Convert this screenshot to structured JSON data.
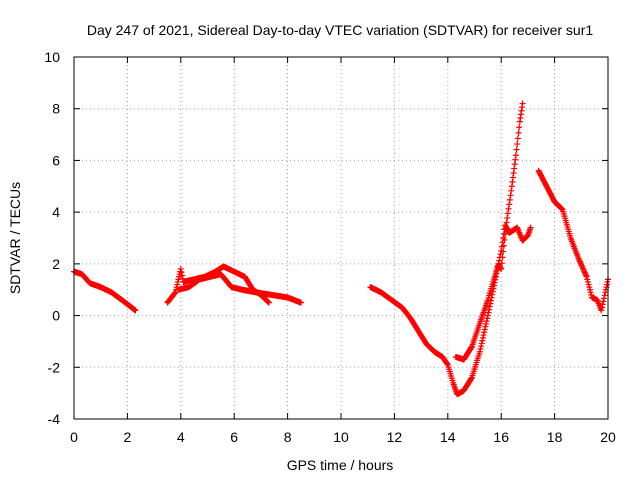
{
  "chart_data": {
    "type": "scatter",
    "title": "Day 247 of 2021, Sidereal Day-to-day VTEC variation (SDTVAR) for receiver sur1",
    "xlabel": "GPS time / hours",
    "ylabel": "SDTVAR / TECUs",
    "xlim": [
      0,
      20
    ],
    "ylim": [
      -4,
      10
    ],
    "xticks": [
      0,
      2,
      4,
      6,
      8,
      10,
      12,
      14,
      16,
      18,
      20
    ],
    "yticks": [
      -4,
      -2,
      0,
      2,
      4,
      6,
      8,
      10
    ],
    "grid": true,
    "marker": "+",
    "color": "#ff0000",
    "series": [
      {
        "name": "sur1",
        "segments": [
          [
            [
              0.0,
              1.7
            ],
            [
              0.3,
              1.6
            ],
            [
              0.6,
              1.25
            ],
            [
              1.0,
              1.1
            ],
            [
              1.4,
              0.9
            ],
            [
              1.8,
              0.6
            ],
            [
              2.3,
              0.2
            ]
          ],
          [
            [
              3.5,
              0.5
            ],
            [
              3.8,
              0.9
            ],
            [
              4.0,
              1.8
            ],
            [
              4.1,
              1.3
            ],
            [
              4.5,
              1.4
            ],
            [
              4.9,
              1.5
            ],
            [
              5.3,
              1.7
            ],
            [
              5.6,
              1.9
            ],
            [
              6.0,
              1.7
            ],
            [
              6.4,
              1.5
            ],
            [
              6.7,
              1.0
            ],
            [
              7.0,
              0.8
            ],
            [
              7.3,
              0.5
            ]
          ],
          [
            [
              3.9,
              1.0
            ],
            [
              4.3,
              1.1
            ],
            [
              4.7,
              1.4
            ],
            [
              5.1,
              1.5
            ],
            [
              5.5,
              1.6
            ],
            [
              5.9,
              1.1
            ],
            [
              6.3,
              1.0
            ],
            [
              6.8,
              0.9
            ],
            [
              7.4,
              0.8
            ],
            [
              8.0,
              0.7
            ],
            [
              8.5,
              0.5
            ]
          ],
          [
            [
              11.1,
              1.1
            ],
            [
              11.5,
              0.9
            ],
            [
              11.9,
              0.6
            ],
            [
              12.3,
              0.3
            ],
            [
              12.6,
              -0.1
            ],
            [
              12.9,
              -0.6
            ],
            [
              13.2,
              -1.1
            ],
            [
              13.5,
              -1.4
            ],
            [
              13.8,
              -1.6
            ],
            [
              14.0,
              -1.9
            ],
            [
              14.2,
              -2.6
            ],
            [
              14.35,
              -3.05
            ],
            [
              14.6,
              -2.9
            ],
            [
              14.9,
              -2.4
            ],
            [
              15.2,
              -1.4
            ],
            [
              15.5,
              0.0
            ],
            [
              15.8,
              1.5
            ],
            [
              16.0,
              2.5
            ],
            [
              16.15,
              3.5
            ],
            [
              16.3,
              3.2
            ],
            [
              16.6,
              3.4
            ],
            [
              16.8,
              2.9
            ],
            [
              17.0,
              3.1
            ],
            [
              17.1,
              3.4
            ]
          ],
          [
            [
              14.3,
              -1.6
            ],
            [
              14.6,
              -1.7
            ],
            [
              14.9,
              -1.2
            ],
            [
              15.2,
              -0.3
            ],
            [
              15.5,
              0.6
            ],
            [
              15.7,
              1.3
            ],
            [
              15.9,
              2.0
            ],
            [
              16.0,
              1.8
            ],
            [
              16.2,
              3.6
            ],
            [
              16.4,
              5.0
            ],
            [
              16.55,
              6.2
            ],
            [
              16.7,
              7.5
            ],
            [
              16.8,
              8.2
            ]
          ],
          [
            [
              17.4,
              5.6
            ],
            [
              17.7,
              5.0
            ],
            [
              18.0,
              4.4
            ],
            [
              18.3,
              4.1
            ],
            [
              18.6,
              3.0
            ],
            [
              18.9,
              2.2
            ],
            [
              19.2,
              1.5
            ],
            [
              19.4,
              0.7
            ],
            [
              19.6,
              0.6
            ],
            [
              19.75,
              0.2
            ],
            [
              19.9,
              0.9
            ],
            [
              20.0,
              1.4
            ]
          ]
        ]
      }
    ]
  }
}
